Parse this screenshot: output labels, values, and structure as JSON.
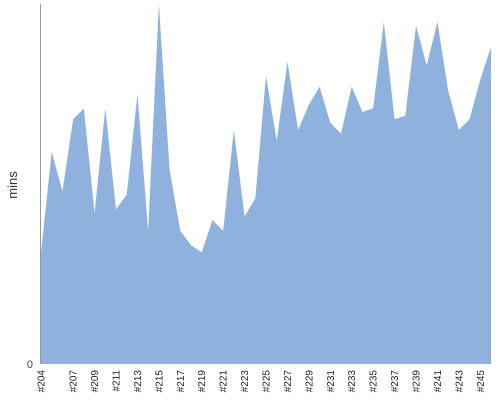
{
  "chart_data": {
    "type": "area",
    "title": "",
    "xlabel": "",
    "ylabel": "mins",
    "y_tick_labels": [
      "0"
    ],
    "ylim": [
      0,
      100
    ],
    "grid": false,
    "legend": "none",
    "colors": {
      "fill": "#8eb2dd",
      "axis": "#999999"
    },
    "x": [
      "#204",
      "#205",
      "#206",
      "#207",
      "#208",
      "#209",
      "#210",
      "#211",
      "#212",
      "#213",
      "#214",
      "#215",
      "#216",
      "#217",
      "#218",
      "#219",
      "#220",
      "#221",
      "#222",
      "#223",
      "#224",
      "#225",
      "#226",
      "#227",
      "#228",
      "#229",
      "#230",
      "#231",
      "#232",
      "#233",
      "#234",
      "#235",
      "#236",
      "#237",
      "#238",
      "#239",
      "#240",
      "#241",
      "#242",
      "#243",
      "#244",
      "#245",
      "#246"
    ],
    "x_tick_labels": [
      "#204",
      "#207",
      "#209",
      "#211",
      "#213",
      "#215",
      "#217",
      "#219",
      "#221",
      "#223",
      "#225",
      "#227",
      "#229",
      "#231",
      "#233",
      "#235",
      "#237",
      "#239",
      "#241",
      "#243",
      "#245"
    ],
    "values": [
      31,
      59,
      48,
      68,
      71,
      42,
      71,
      43,
      47,
      75,
      37,
      101,
      54,
      37,
      33,
      31,
      40,
      37,
      65,
      41,
      46,
      80,
      62,
      84,
      65,
      72,
      77,
      67,
      64,
      77,
      70,
      71,
      95,
      68,
      69,
      94,
      83,
      95,
      76,
      65,
      68,
      79,
      88
    ]
  }
}
